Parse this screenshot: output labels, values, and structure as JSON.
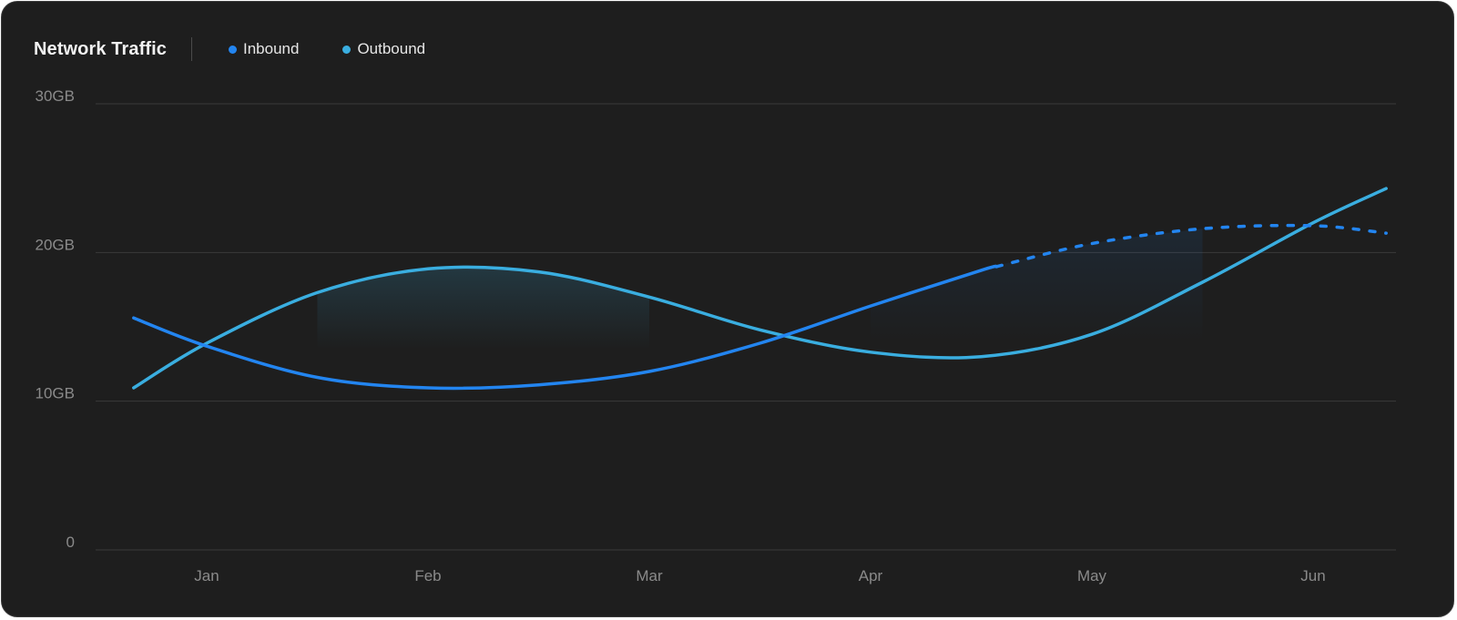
{
  "header": {
    "title": "Network Traffic"
  },
  "colors": {
    "inbound": "#2385f0",
    "outbound": "#3aaee0",
    "grid": "#3a3a3a",
    "tick": "#8a8a8a"
  },
  "chart_data": {
    "type": "line",
    "title": "Network Traffic",
    "xlabel": "",
    "ylabel": "",
    "categories": [
      "Jan",
      "Feb",
      "Mar",
      "Apr",
      "May",
      "Jun"
    ],
    "y_ticks": [
      "30GB",
      "20GB",
      "10GB",
      "0"
    ],
    "y_tick_values": [
      30,
      20,
      10,
      0
    ],
    "ylim": [
      0,
      30
    ],
    "grid": true,
    "legend_position": "top-left",
    "series": [
      {
        "name": "Inbound",
        "color": "#2385f0",
        "points": [
          [
            0.67,
            15.6
          ],
          [
            1.0,
            13.7
          ],
          [
            1.5,
            11.6
          ],
          [
            2.0,
            10.9
          ],
          [
            2.5,
            11.1
          ],
          [
            3.0,
            12.0
          ],
          [
            3.5,
            13.9
          ],
          [
            4.0,
            16.4
          ],
          [
            4.5,
            18.8
          ],
          [
            5.0,
            20.6
          ],
          [
            5.5,
            21.6
          ],
          [
            6.0,
            21.8
          ],
          [
            6.33,
            21.3
          ]
        ],
        "projected_from": 4.57
      },
      {
        "name": "Outbound",
        "color": "#3aaee0",
        "points": [
          [
            0.67,
            10.9
          ],
          [
            1.0,
            13.9
          ],
          [
            1.5,
            17.3
          ],
          [
            2.0,
            18.9
          ],
          [
            2.5,
            18.7
          ],
          [
            3.0,
            17.0
          ],
          [
            3.5,
            14.8
          ],
          [
            4.0,
            13.3
          ],
          [
            4.5,
            13.0
          ],
          [
            5.0,
            14.5
          ],
          [
            5.5,
            18.0
          ],
          [
            6.0,
            22.0
          ],
          [
            6.33,
            24.3
          ]
        ]
      }
    ]
  }
}
